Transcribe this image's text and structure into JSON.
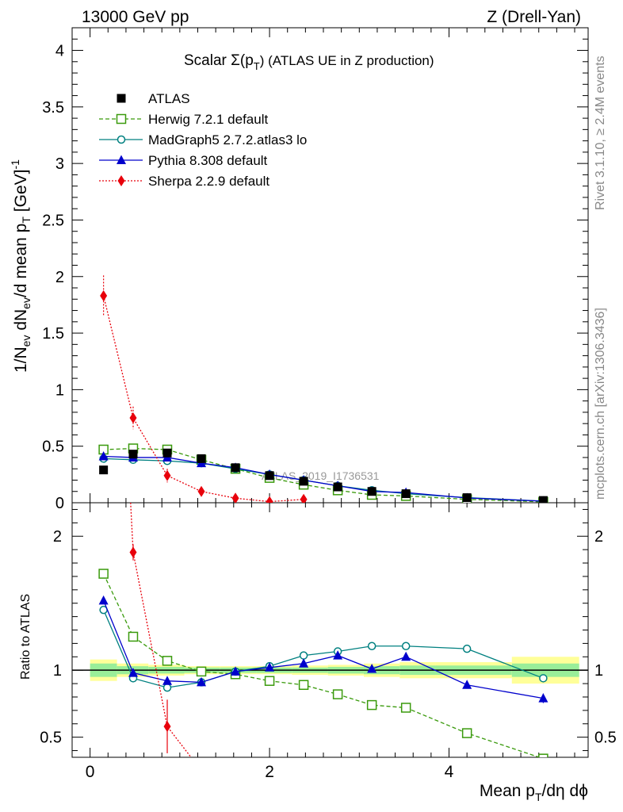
{
  "header": {
    "energy_label": "13000 GeV pp",
    "process_label": "Z (Drell-Yan)"
  },
  "side": {
    "rivet_label": "Rivet 3.1.10, ≥ 2.4M events",
    "mcplots_label": "mcplots.cern.ch [arXiv:1306.3436]"
  },
  "chart_data": {
    "type": "line",
    "title": "Scalar Σ(p_T) (ATLAS UE in Z production)",
    "title_parts": {
      "main": "Scalar Σ(p",
      "sub": "T",
      "tail": ") (ATLAS UE in Z production)"
    },
    "watermark": "ATLAS_2019_I1736531",
    "xlabel": "Mean p_T/dη dϕ",
    "xlabel_parts": {
      "main": "Mean p",
      "sub": "T",
      "tail": "/dη dϕ"
    },
    "ylabel": "1/N_ev dN_ev/d mean p_T [GeV]^-1",
    "ylabel_parts": {
      "a": "1/N",
      "a_sub": "ev",
      "b": " dN",
      "b_sub": "ev",
      "c": "/d mean p",
      "c_sub": "T",
      "d": " [GeV]",
      "d_sup": "-1"
    },
    "ratio_ylabel": "Ratio to ATLAS",
    "xlim": [
      -0.2,
      5.55
    ],
    "ylim": [
      0,
      4.2
    ],
    "ratio_ylim": [
      0.35,
      2.25
    ],
    "x_ticks": [
      0,
      2,
      4
    ],
    "x_tick_labels": [
      "0",
      "2",
      "4"
    ],
    "y_ticks": [
      0,
      0.5,
      1,
      1.5,
      2,
      2.5,
      3,
      3.5,
      4
    ],
    "y_tick_labels": [
      "0",
      "0.5",
      "1",
      "1.5",
      "2",
      "2.5",
      "3",
      "3.5",
      "4"
    ],
    "ratio_ticks": [
      0.5,
      1,
      2
    ],
    "ratio_tick_labels": [
      "0.5",
      "1",
      "2"
    ],
    "bins": [
      {
        "lo": 0.0,
        "hi": 0.3,
        "yellow": 0.08,
        "green": 0.05
      },
      {
        "lo": 0.3,
        "hi": 0.65,
        "yellow": 0.05,
        "green": 0.03
      },
      {
        "lo": 0.65,
        "hi": 1.05,
        "yellow": 0.04,
        "green": 0.025
      },
      {
        "lo": 1.05,
        "hi": 1.45,
        "yellow": 0.03,
        "green": 0.02
      },
      {
        "lo": 1.45,
        "hi": 1.85,
        "yellow": 0.03,
        "green": 0.02
      },
      {
        "lo": 1.85,
        "hi": 2.25,
        "yellow": 0.03,
        "green": 0.02
      },
      {
        "lo": 2.25,
        "hi": 2.65,
        "yellow": 0.035,
        "green": 0.02
      },
      {
        "lo": 2.65,
        "hi": 3.05,
        "yellow": 0.04,
        "green": 0.025
      },
      {
        "lo": 3.05,
        "hi": 3.45,
        "yellow": 0.05,
        "green": 0.03
      },
      {
        "lo": 3.45,
        "hi": 3.85,
        "yellow": 0.06,
        "green": 0.035
      },
      {
        "lo": 3.85,
        "hi": 4.7,
        "yellow": 0.06,
        "green": 0.035
      },
      {
        "lo": 4.7,
        "hi": 5.45,
        "yellow": 0.1,
        "green": 0.05
      }
    ],
    "data": {
      "name": "ATLAS",
      "color": "#000000",
      "x": [
        0.15,
        0.48,
        0.86,
        1.24,
        1.62,
        2.0,
        2.38,
        2.76,
        3.14,
        3.52,
        4.2,
        5.05
      ],
      "y": [
        0.29,
        0.43,
        0.44,
        0.39,
        0.31,
        0.24,
        0.19,
        0.14,
        0.1,
        0.08,
        0.045,
        0.02
      ]
    },
    "series": [
      {
        "name": "Herwig 7.2.1 default",
        "color": "#3a9a0c",
        "marker": "square-open",
        "dash": "5,3",
        "x": [
          0.15,
          0.48,
          0.86,
          1.24,
          1.62,
          2.0,
          2.38,
          2.76,
          3.14,
          3.52,
          4.2,
          5.05
        ],
        "y": [
          0.47,
          0.48,
          0.47,
          0.38,
          0.3,
          0.22,
          0.16,
          0.11,
          0.07,
          0.06,
          0.03,
          0.008
        ],
        "ratio": [
          1.72,
          1.25,
          1.07,
          0.99,
          0.97,
          0.92,
          0.89,
          0.82,
          0.74,
          0.72,
          0.53,
          0.34
        ]
      },
      {
        "name": "MadGraph5 2.7.2.atlas3 lo",
        "color": "#008080",
        "marker": "circle-open",
        "dash": "",
        "x": [
          0.15,
          0.48,
          0.86,
          1.24,
          1.62,
          2.0,
          2.38,
          2.76,
          3.14,
          3.52,
          4.2,
          5.05
        ],
        "y": [
          0.39,
          0.38,
          0.37,
          0.35,
          0.3,
          0.25,
          0.2,
          0.15,
          0.11,
          0.08,
          0.045,
          0.015
        ],
        "ratio": [
          1.45,
          0.94,
          0.87,
          0.91,
          0.99,
          1.03,
          1.11,
          1.14,
          1.18,
          1.18,
          1.16,
          0.94
        ]
      },
      {
        "name": "Pythia 8.308 default",
        "color": "#0000cc",
        "marker": "triangle",
        "dash": "",
        "x": [
          0.15,
          0.48,
          0.86,
          1.24,
          1.62,
          2.0,
          2.38,
          2.76,
          3.14,
          3.52,
          4.2,
          5.05
        ],
        "y": [
          0.41,
          0.4,
          0.4,
          0.35,
          0.31,
          0.25,
          0.2,
          0.15,
          0.1,
          0.09,
          0.042,
          0.014
        ],
        "ratio": [
          1.52,
          0.98,
          0.92,
          0.91,
          0.99,
          1.02,
          1.05,
          1.11,
          1.01,
          1.1,
          0.89,
          0.79
        ],
        "ratio_err": [
          0,
          0,
          0,
          0,
          0,
          0,
          0,
          0,
          0.02,
          0.02,
          0.02,
          0.035
        ]
      },
      {
        "name": "Sherpa 2.2.9 default",
        "color": "#e8000b",
        "marker": "diamond",
        "dash": "2,2",
        "x": [
          0.15,
          0.48,
          0.86,
          1.24,
          1.62,
          2.0,
          2.38
        ],
        "y": [
          1.83,
          0.75,
          0.24,
          0.1,
          0.04,
          0.01,
          0.03
        ],
        "err": [
          0.18,
          0.1,
          0.06,
          0.02,
          0.01,
          0.005,
          0.01
        ],
        "ratio": [
          6.2,
          1.88,
          0.58,
          0.25
        ],
        "ratio_err": [
          0,
          0.06,
          0.2,
          0.05
        ]
      }
    ]
  }
}
